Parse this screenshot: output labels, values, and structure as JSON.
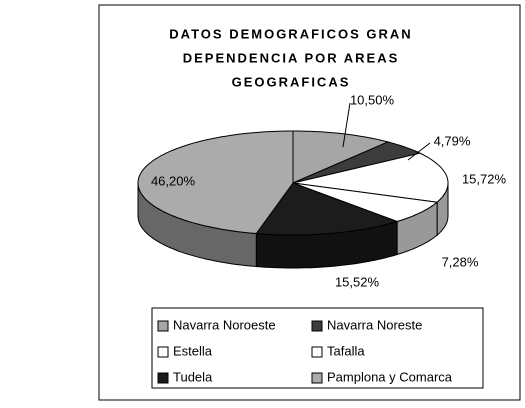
{
  "chart_data": {
    "type": "pie3d",
    "title": [
      "DATOS DEMOGRAFICOS GRAN",
      "DEPENDENCIA POR AREAS",
      "GEOGRAFICAS"
    ],
    "categories": [
      "Navarra Noroeste",
      "Navarra Noreste",
      "Estella",
      "Tafalla",
      "Tudela",
      "Pamplona y Comarca"
    ],
    "values": [
      10.5,
      4.79,
      15.72,
      7.28,
      15.52,
      46.2
    ],
    "value_labels": [
      "10,50%",
      "4,79%",
      "15,72%",
      "7,28%",
      "15,52%",
      "46,20%"
    ],
    "colors": [
      "#a6a6a6",
      "#3c3c3c",
      "#ffffff",
      "#ffffff",
      "#1c1c1c",
      "#ababab"
    ],
    "legend": "bottom"
  }
}
